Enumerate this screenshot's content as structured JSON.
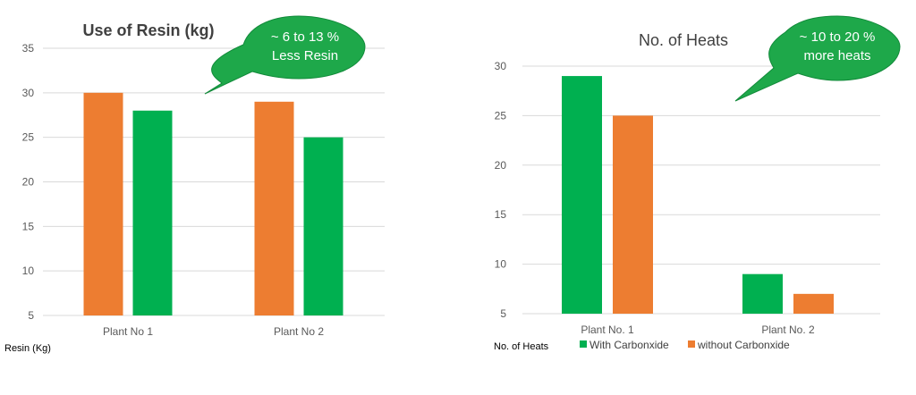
{
  "colors": {
    "orange": "#ED7D31",
    "green": "#00B050",
    "bubble": "#1EA84A"
  },
  "chart_data": [
    {
      "type": "bar",
      "title": "Use of Resin (kg)",
      "ylabel": "Resin (Kg)",
      "categories": [
        "Plant No 1",
        "Plant No 2"
      ],
      "series": [
        {
          "color": "#ED7D31",
          "values": [
            30,
            29
          ]
        },
        {
          "color": "#00B050",
          "values": [
            28,
            25
          ]
        }
      ],
      "ylim": [
        5,
        35
      ],
      "yticks": [
        5,
        10,
        15,
        20,
        25,
        30,
        35
      ],
      "grid": true,
      "annotation": {
        "line1": "~ 6 to 13 %",
        "line2": "Less Resin"
      }
    },
    {
      "type": "bar",
      "title": "No. of Heats",
      "legend_label": "No. of Heats",
      "categories": [
        "Plant No. 1",
        "Plant No. 2"
      ],
      "series": [
        {
          "name": "With Carbonxide",
          "color": "#00B050",
          "values": [
            29,
            9
          ]
        },
        {
          "name": "without Carbonxide",
          "color": "#ED7D31",
          "values": [
            25,
            7
          ]
        }
      ],
      "ylim": [
        5,
        30
      ],
      "yticks": [
        5,
        10,
        15,
        20,
        25,
        30
      ],
      "grid": true,
      "legend": "bottom",
      "annotation": {
        "line1": "~ 10 to 20 %",
        "line2": "more heats"
      }
    }
  ]
}
